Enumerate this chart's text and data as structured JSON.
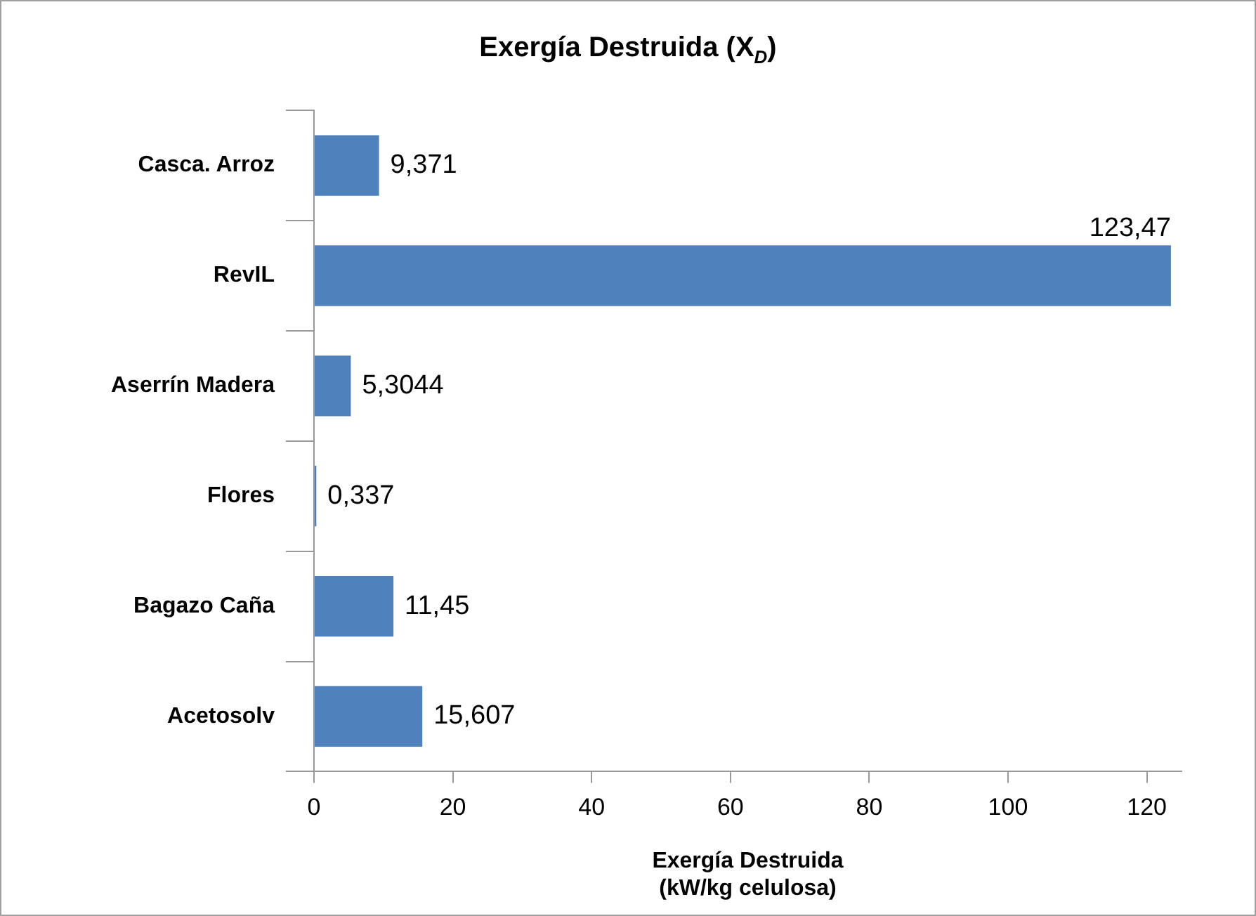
{
  "chart_data": {
    "type": "bar",
    "orientation": "horizontal",
    "title": "Exergía Destruida (X$_{D}$)",
    "xlabel": "Exergía Destruida\n(kW/kg celulosa)",
    "categories": [
      "Casca. Arroz",
      "RevIL",
      "Aserrín Madera",
      "Flores",
      "Bagazo Caña",
      "Acetosolv"
    ],
    "values": [
      9.371,
      123.47,
      5.3044,
      0.337,
      11.45,
      15.607
    ],
    "value_labels": [
      "9,371",
      "123,47",
      "5,3044",
      "0,337",
      "11,45",
      "15,607"
    ],
    "color": "#4f81bd",
    "xlim": [
      0,
      125
    ],
    "xticks": [
      0,
      20,
      40,
      60,
      80,
      100,
      120
    ],
    "grid": false,
    "legend": false
  }
}
